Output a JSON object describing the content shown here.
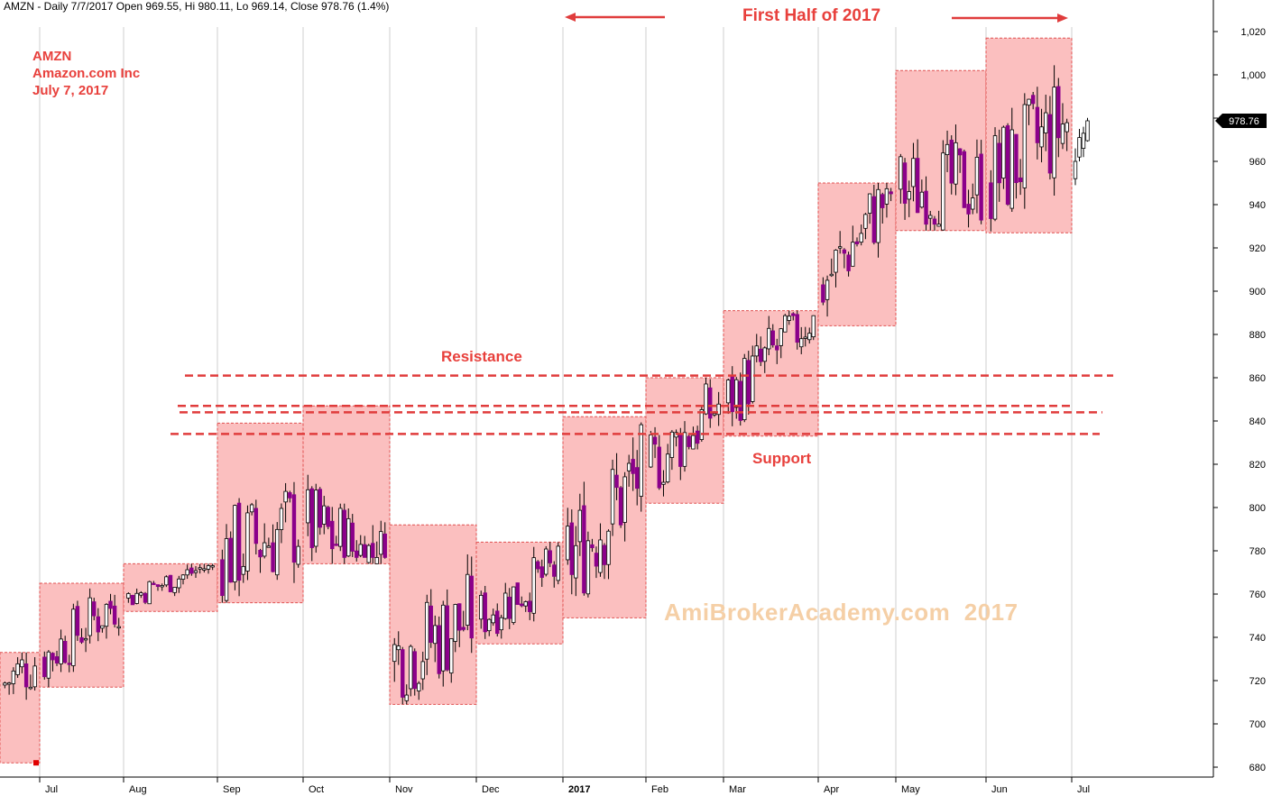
{
  "header": "AMZN - Daily 7/7/2017 Open 969.55, Hi 980.11, Lo 969.14, Close 978.76 (1.4%)",
  "info": {
    "symbol": "AMZN",
    "company": "Amazon.com Inc",
    "date": "July 7, 2017"
  },
  "annotations": {
    "title": "First Half of 2017",
    "resistance": "Resistance",
    "support": "Support"
  },
  "watermark": "AmiBrokerAcademy.com  2017",
  "last_price_label": "978.76",
  "colors": {
    "box_fill": "#fbbcbc",
    "box_border": "#e05050",
    "line": "#e03c3c",
    "up_body": "#ffffff",
    "down_body": "#8b008b",
    "annotation": "#e8403c",
    "watermark": "#f5cfa6"
  },
  "chart_data": {
    "type": "candlestick",
    "ylim": [
      676,
      1026
    ],
    "y_ticks": [
      680,
      700,
      720,
      740,
      760,
      780,
      800,
      820,
      840,
      860,
      880,
      900,
      920,
      940,
      960,
      980,
      1000,
      1020
    ],
    "x_ticks": [
      "Jul",
      "Aug",
      "Sep",
      "Oct",
      "Nov",
      "Dec",
      "2017",
      "Feb",
      "Mar",
      "Apr",
      "May",
      "Jun",
      "Jul"
    ],
    "monthly_ranges": [
      {
        "month": "Jun 2016",
        "high": 733,
        "low": 682
      },
      {
        "month": "Jul 2016",
        "high": 765,
        "low": 717
      },
      {
        "month": "Aug 2016",
        "high": 774,
        "low": 752
      },
      {
        "month": "Sep 2016",
        "high": 839,
        "low": 756
      },
      {
        "month": "Oct 2016",
        "high": 847,
        "low": 774
      },
      {
        "month": "Nov 2016",
        "high": 792,
        "low": 709
      },
      {
        "month": "Dec 2016",
        "high": 784,
        "low": 737
      },
      {
        "month": "Jan 2017",
        "high": 842,
        "low": 749
      },
      {
        "month": "Feb 2017",
        "high": 860,
        "low": 802
      },
      {
        "month": "Mar 2017",
        "high": 891,
        "low": 833
      },
      {
        "month": "Apr 2017",
        "high": 950,
        "low": 884
      },
      {
        "month": "May 2017",
        "high": 1002,
        "low": 928
      },
      {
        "month": "Jun 2017",
        "high": 1017,
        "low": 927
      }
    ],
    "horizontal_lines": [
      861,
      847,
      844,
      834
    ],
    "last_close": 978.76
  }
}
